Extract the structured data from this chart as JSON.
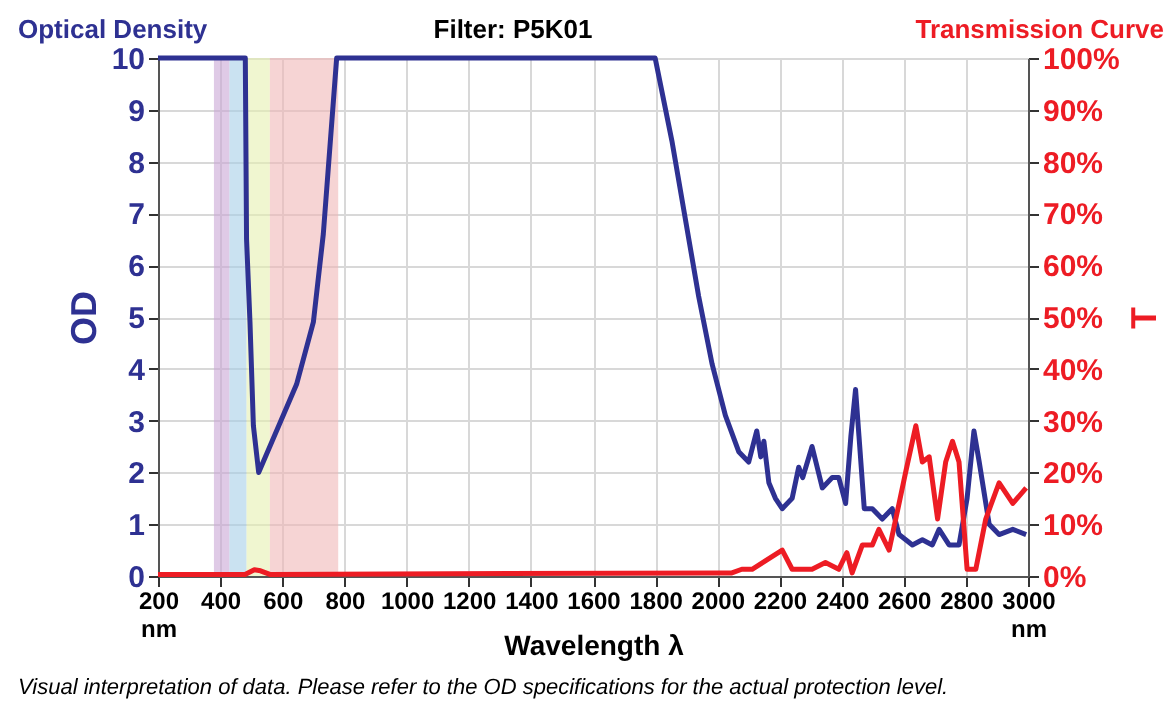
{
  "chart_data": {
    "type": "line",
    "title": "Filter: P5K01",
    "xlabel": "Wavelength λ",
    "ylabel": "OD",
    "y2label": "T",
    "annotations": [
      "Optical Density",
      "Transmission Curve",
      "Visual interpretation of data. Please refer to the OD specifications for the actual protection level."
    ],
    "xlim": [
      200,
      3000
    ],
    "xticks": [
      {
        "value": 200,
        "label": "200 nm"
      },
      400,
      600,
      800,
      1000,
      1200,
      1400,
      1600,
      1800,
      2000,
      2200,
      2400,
      2600,
      2800,
      {
        "value": 3000,
        "label": "3000 nm"
      }
    ],
    "ylim": [
      0,
      10
    ],
    "yticks": [
      0,
      1,
      2,
      3,
      4,
      5,
      6,
      7,
      8,
      9,
      10
    ],
    "y2lim": [
      0,
      100
    ],
    "y2ticks": [
      {
        "value": 0,
        "label": "0%"
      },
      {
        "value": 10,
        "label": "10%"
      },
      {
        "value": 20,
        "label": "20%"
      },
      {
        "value": 30,
        "label": "30%"
      },
      {
        "value": 40,
        "label": "40%"
      },
      {
        "value": 50,
        "label": "50%"
      },
      {
        "value": 60,
        "label": "60%"
      },
      {
        "value": 70,
        "label": "70%"
      },
      {
        "value": 80,
        "label": "80%"
      },
      {
        "value": 90,
        "label": "90%"
      },
      {
        "value": 100,
        "label": "100%"
      }
    ],
    "grid": true,
    "line_style": "solid",
    "marker": "none",
    "bands": [
      {
        "axis": "x",
        "from": 380,
        "to": 430,
        "color": "#c9a6d6"
      },
      {
        "axis": "x",
        "from": 430,
        "to": 485,
        "color": "#a6cfe8"
      },
      {
        "axis": "x",
        "from": 485,
        "to": 560,
        "color": "#e6f0b0"
      },
      {
        "axis": "x",
        "from": 560,
        "to": 780,
        "color": "#f0b8b8"
      }
    ],
    "series": [
      {
        "color": "#2e3192",
        "x": [
          200,
          481,
          485,
          496,
          507,
          524,
          646,
          700,
          732,
          775,
          1800,
          1854,
          1897,
          1940,
          1983,
          2026,
          2069,
          2101,
          2127,
          2140,
          2150,
          2166,
          2187,
          2209,
          2241,
          2262,
          2275,
          2305,
          2338,
          2370,
          2391,
          2413,
          2430,
          2445,
          2456,
          2473,
          2499,
          2531,
          2563,
          2585,
          2628,
          2660,
          2692,
          2714,
          2746,
          2778,
          2804,
          2826,
          2843,
          2875,
          2907,
          2951,
          2994
        ],
        "values": [
          10,
          10,
          6.5,
          4.9,
          2.9,
          2.0,
          3.7,
          4.9,
          6.6,
          10,
          10,
          8.4,
          6.9,
          5.4,
          4.1,
          3.1,
          2.4,
          2.2,
          2.8,
          2.3,
          2.6,
          1.8,
          1.5,
          1.3,
          1.5,
          2.1,
          1.9,
          2.5,
          1.7,
          1.9,
          1.9,
          1.4,
          2.7,
          3.6,
          2.7,
          1.3,
          1.3,
          1.1,
          1.3,
          0.8,
          0.6,
          0.7,
          0.6,
          0.9,
          0.6,
          0.6,
          1.5,
          2.8,
          2.2,
          1.0,
          0.8,
          0.9,
          0.8
        ]
      },
      {
        "color": "#ed1c24",
        "axis": "y2",
        "x": [
          200,
          480,
          510,
          530,
          560,
          2004,
          2047,
          2079,
          2112,
          2209,
          2241,
          2305,
          2348,
          2391,
          2417,
          2434,
          2467,
          2499,
          2520,
          2553,
          2585,
          2606,
          2639,
          2660,
          2682,
          2709,
          2735,
          2757,
          2778,
          2804,
          2832,
          2864,
          2907,
          2951,
          2994
        ],
        "values": [
          0.3,
          0.3,
          1.2,
          1,
          0.3,
          0.6,
          0.6,
          1.3,
          1.3,
          5,
          1.3,
          1.3,
          2.6,
          1.3,
          4.5,
          0.6,
          6,
          6,
          9,
          5,
          14,
          20,
          29,
          22,
          23,
          11,
          22,
          26,
          22,
          1.3,
          1.3,
          11,
          18,
          14,
          17
        ]
      }
    ]
  }
}
